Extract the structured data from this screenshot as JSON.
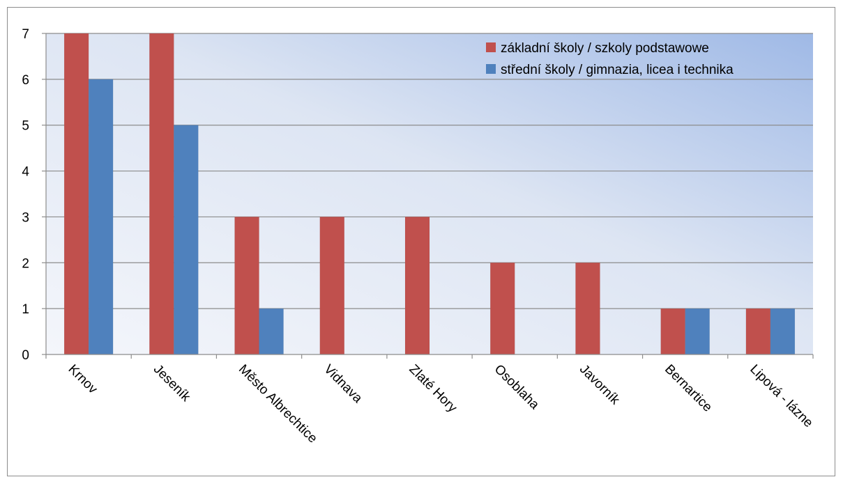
{
  "chart_data": {
    "type": "bar",
    "categories": [
      "Krnov",
      "Jeseník",
      "Město Albrechtice",
      "Vidnava",
      "Zlaté Hory",
      "Osoblaha",
      "Javorník",
      "Bernartice",
      "Lipová - lázne"
    ],
    "series": [
      {
        "name": "základní školy / szkoly podstawowe",
        "values": [
          7,
          7,
          3,
          3,
          3,
          2,
          2,
          1,
          1
        ],
        "color": "#c0504d"
      },
      {
        "name": "střední školy / gimnazia, licea i technika",
        "values": [
          6,
          5,
          1,
          0,
          0,
          0,
          0,
          1,
          1
        ],
        "color": "#4f81bd"
      }
    ],
    "ylim": [
      0,
      7
    ],
    "yticks": [
      0,
      1,
      2,
      3,
      4,
      5,
      6,
      7
    ],
    "grid": true,
    "legend_position": "top-right",
    "xlabel": "",
    "ylabel": "",
    "title": ""
  }
}
